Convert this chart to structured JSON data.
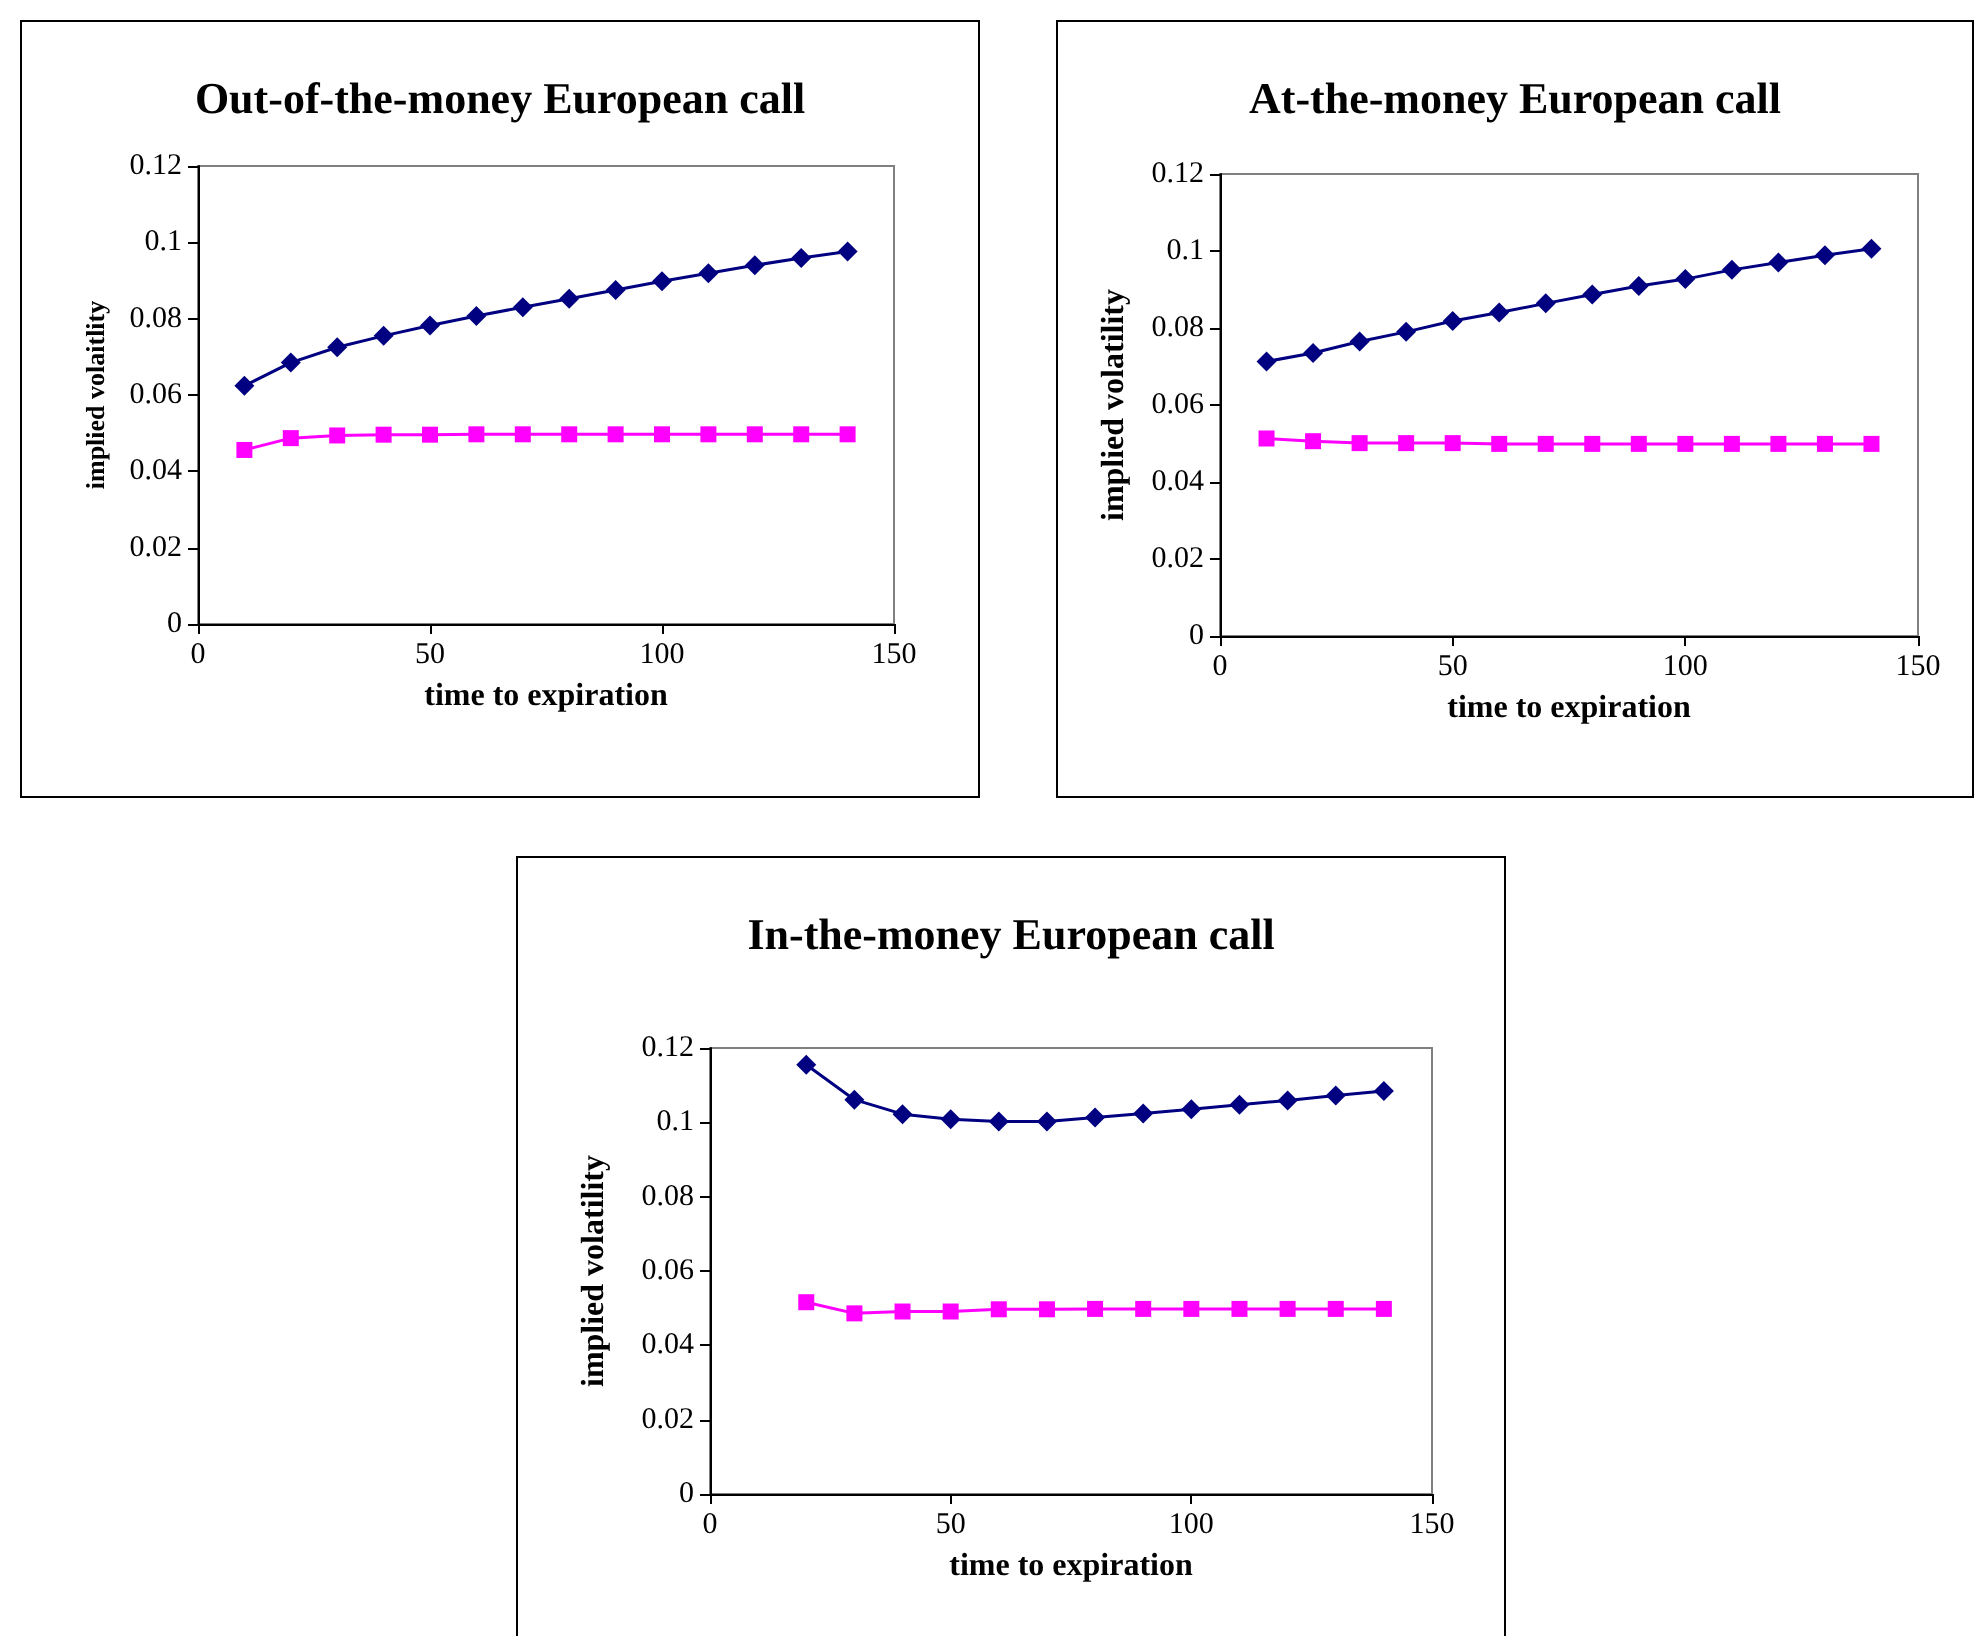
{
  "chart_data": [
    {
      "type": "line",
      "title": "Out-of-the-money European call",
      "xlabel": "time to expiration",
      "ylabel": "implied volaitlity",
      "xlim": [
        0,
        150
      ],
      "xticks": [
        0,
        50,
        100,
        150
      ],
      "ylim": [
        0,
        0.12
      ],
      "yticks": [
        0,
        0.02,
        0.04,
        0.06,
        0.08,
        0.1,
        0.12
      ],
      "grid": false,
      "series": [
        {
          "color": "#000080",
          "marker": "diamond",
          "x": [
            10,
            20,
            30,
            40,
            50,
            60,
            70,
            80,
            90,
            100,
            110,
            120,
            130,
            140
          ],
          "values": [
            0.0624,
            0.0685,
            0.0725,
            0.0755,
            0.0782,
            0.0807,
            0.083,
            0.0852,
            0.0875,
            0.0898,
            0.0919,
            0.094,
            0.0959,
            0.0976
          ]
        },
        {
          "color": "#ff00ff",
          "marker": "square",
          "x": [
            10,
            20,
            30,
            40,
            50,
            60,
            70,
            80,
            90,
            100,
            110,
            120,
            130,
            140
          ],
          "values": [
            0.0456,
            0.0487,
            0.0494,
            0.0496,
            0.0496,
            0.0497,
            0.0497,
            0.0497,
            0.0497,
            0.0497,
            0.0497,
            0.0497,
            0.0497,
            0.0497
          ]
        }
      ]
    },
    {
      "type": "line",
      "title": "At-the-money European call",
      "xlabel": "time to expiration",
      "ylabel": "implied volatility",
      "xlim": [
        0,
        150
      ],
      "xticks": [
        0,
        50,
        100,
        150
      ],
      "ylim": [
        0,
        0.12
      ],
      "yticks": [
        0,
        0.02,
        0.04,
        0.06,
        0.08,
        0.1,
        0.12
      ],
      "grid": false,
      "series": [
        {
          "color": "#000080",
          "marker": "diamond",
          "x": [
            10,
            20,
            30,
            40,
            50,
            60,
            70,
            80,
            90,
            100,
            110,
            120,
            130,
            140
          ],
          "values": [
            0.0713,
            0.0735,
            0.0765,
            0.079,
            0.0818,
            0.084,
            0.0864,
            0.0887,
            0.0909,
            0.0927,
            0.0951,
            0.097,
            0.0989,
            0.1006
          ]
        },
        {
          "color": "#ff00ff",
          "marker": "square",
          "x": [
            10,
            20,
            30,
            40,
            50,
            60,
            70,
            80,
            90,
            100,
            110,
            120,
            130,
            140
          ],
          "values": [
            0.0513,
            0.0506,
            0.0501,
            0.0501,
            0.0501,
            0.0499,
            0.0499,
            0.0499,
            0.0499,
            0.0499,
            0.0499,
            0.0499,
            0.0499,
            0.0499
          ]
        }
      ]
    },
    {
      "type": "line",
      "title": "In-the-money European call",
      "xlabel": "time to expiration",
      "ylabel": "implied volatility",
      "xlim": [
        0,
        150
      ],
      "xticks": [
        0,
        50,
        100,
        150
      ],
      "ylim": [
        0,
        0.12
      ],
      "yticks": [
        0,
        0.02,
        0.04,
        0.06,
        0.08,
        0.1,
        0.12
      ],
      "grid": false,
      "series": [
        {
          "color": "#000080",
          "marker": "diamond",
          "x": [
            20,
            30,
            40,
            50,
            60,
            70,
            80,
            90,
            100,
            110,
            120,
            130,
            140
          ],
          "values": [
            0.1155,
            0.1061,
            0.1022,
            0.1008,
            0.1002,
            0.1002,
            0.1013,
            0.1024,
            0.1035,
            0.1047,
            0.1059,
            0.1072,
            0.1084
          ]
        },
        {
          "color": "#ff00ff",
          "marker": "square",
          "x": [
            20,
            30,
            40,
            50,
            60,
            70,
            80,
            90,
            100,
            110,
            120,
            130,
            140
          ],
          "values": [
            0.0516,
            0.0486,
            0.0491,
            0.0491,
            0.0497,
            0.0497,
            0.0498,
            0.0498,
            0.0498,
            0.0498,
            0.0498,
            0.0498,
            0.0498
          ]
        }
      ]
    }
  ]
}
